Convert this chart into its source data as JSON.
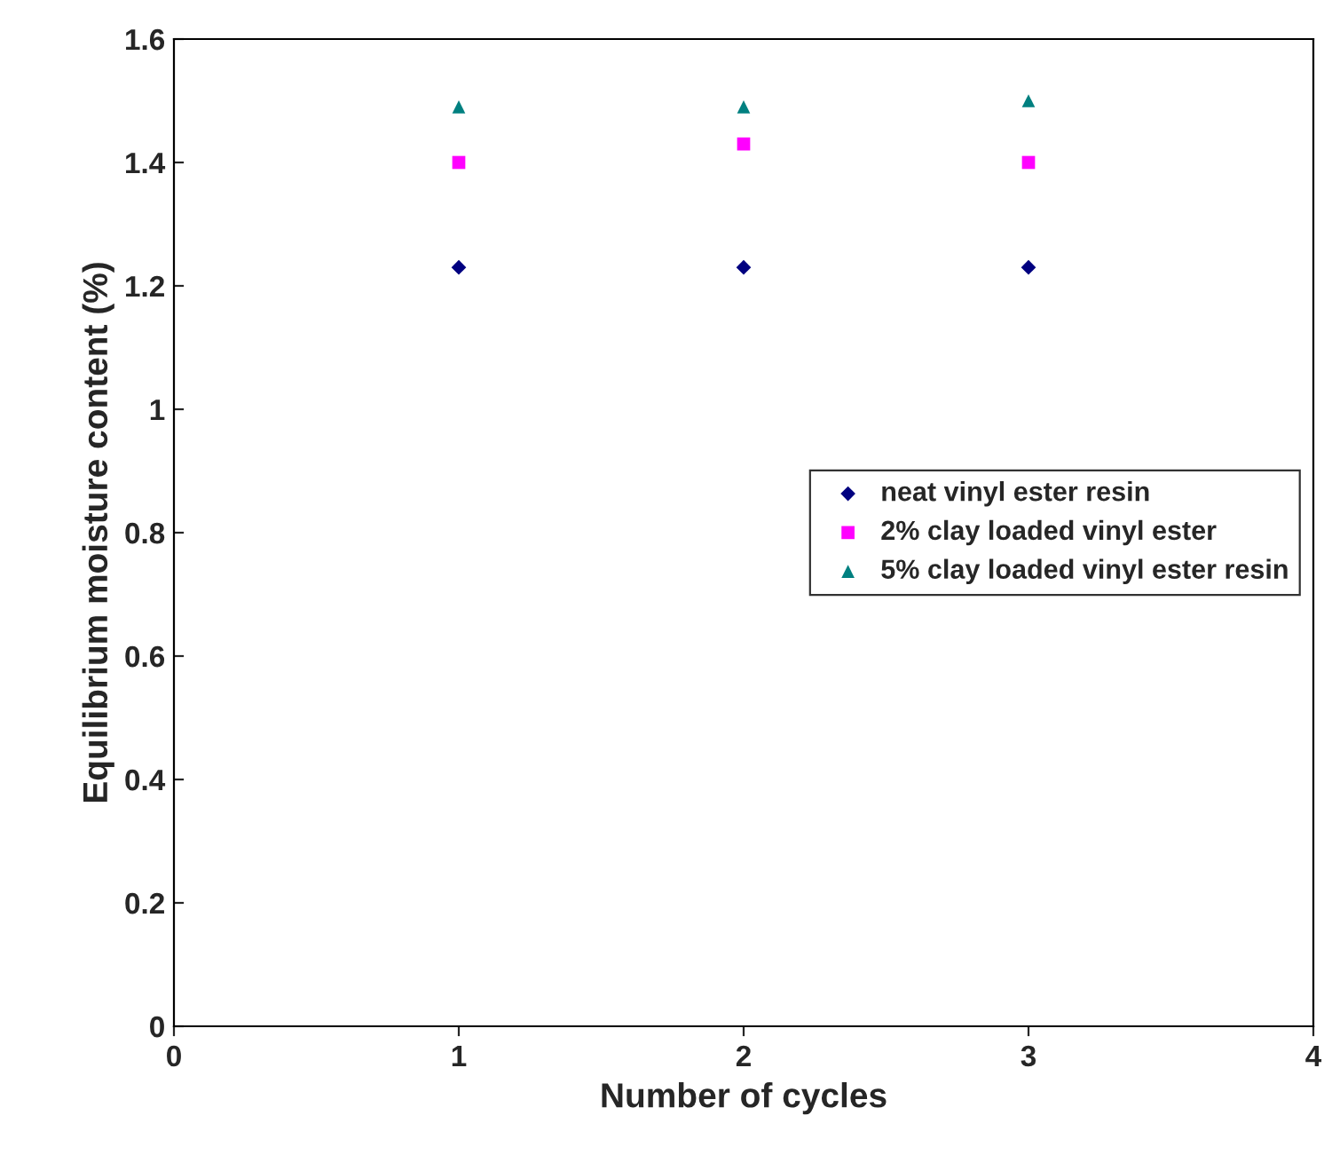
{
  "chart_data": {
    "type": "scatter",
    "xlabel": "Number of cycles",
    "ylabel": "Equilibrium moisture content (%)",
    "x": [
      1,
      2,
      3
    ],
    "series": [
      {
        "name": "neat vinyl ester resin",
        "color": "#000080",
        "marker": "diamond",
        "values": [
          1.23,
          1.23,
          1.23
        ]
      },
      {
        "name": "2% clay loaded vinyl ester",
        "color": "#ff00ff",
        "marker": "square",
        "values": [
          1.4,
          1.43,
          1.4
        ]
      },
      {
        "name": "5% clay loaded vinyl ester resin",
        "color": "#008080",
        "marker": "triangle",
        "values": [
          1.49,
          1.49,
          1.5
        ]
      }
    ],
    "xlim": [
      0,
      4
    ],
    "xticks": [
      0,
      1,
      2,
      3,
      4
    ],
    "ylim": [
      0,
      1.6
    ],
    "yticks": [
      0,
      0.2,
      0.4,
      0.6,
      0.8,
      1,
      1.2,
      1.4,
      1.6
    ],
    "grid": false,
    "legend": "center right"
  }
}
